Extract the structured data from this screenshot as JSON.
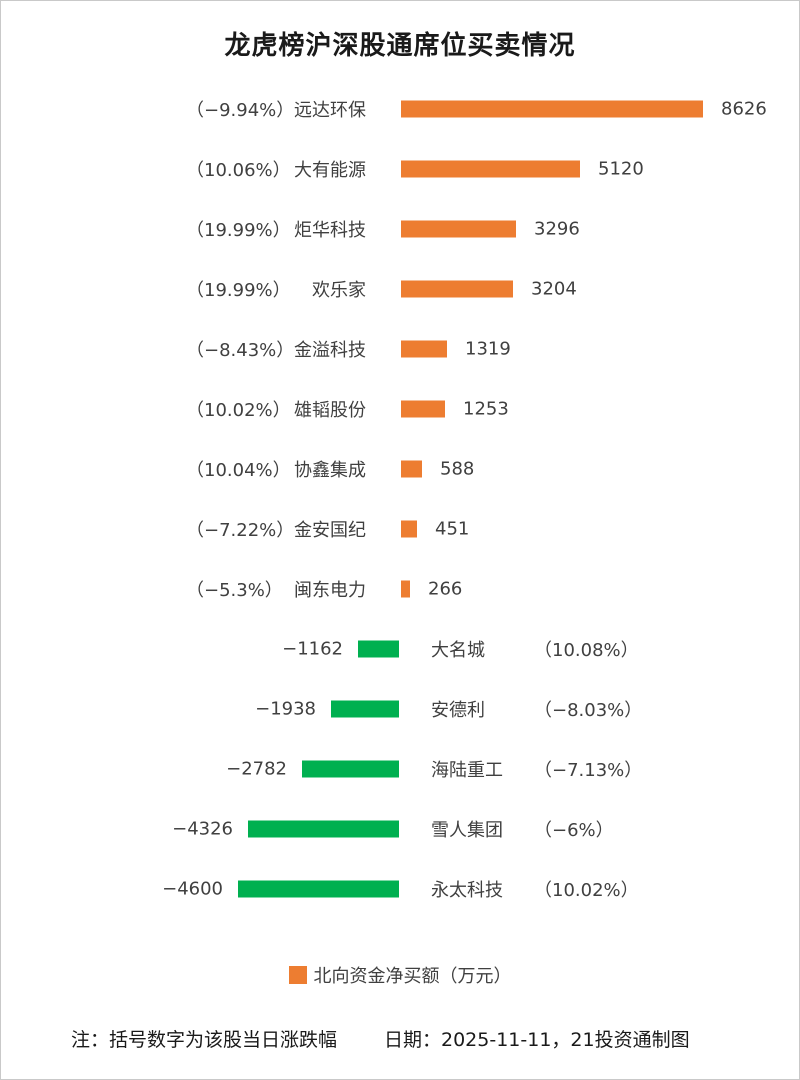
{
  "chart_data": {
    "type": "bar",
    "orientation": "horizontal",
    "title": "龙虎榜沪深股通席位买卖情况",
    "legend_label": "北向资金净买额（万元）",
    "legend_position": "bottom",
    "unit": "万元",
    "value_range": [
      -4600,
      8626
    ],
    "grid": false,
    "positive_color": "#ED7D31",
    "negative_color": "#00B050",
    "rows": [
      {
        "pct": "（−9.94%）",
        "name": "远达环保",
        "value": 8626,
        "display": "8626",
        "side": "buy"
      },
      {
        "pct": "（10.06%）",
        "name": "大有能源",
        "value": 5120,
        "display": "5120",
        "side": "buy"
      },
      {
        "pct": "（19.99%）",
        "name": "炬华科技",
        "value": 3296,
        "display": "3296",
        "side": "buy"
      },
      {
        "pct": "（19.99%）",
        "name": "欢乐家",
        "value": 3204,
        "display": "3204",
        "side": "buy"
      },
      {
        "pct": "（−8.43%）",
        "name": "金溢科技",
        "value": 1319,
        "display": "1319",
        "side": "buy"
      },
      {
        "pct": "（10.02%）",
        "name": "雄韬股份",
        "value": 1253,
        "display": "1253",
        "side": "buy"
      },
      {
        "pct": "（10.04%）",
        "name": "协鑫集成",
        "value": 588,
        "display": "588",
        "side": "buy"
      },
      {
        "pct": "（−7.22%）",
        "name": "金安国纪",
        "value": 451,
        "display": "451",
        "side": "buy"
      },
      {
        "pct": "（−5.3%）",
        "name": "闽东电力",
        "value": 266,
        "display": "266",
        "side": "buy"
      },
      {
        "pct": "（10.08%）",
        "name": "大名城",
        "value": -1162,
        "display": "−1162",
        "side": "sell"
      },
      {
        "pct": "（−8.03%）",
        "name": "安德利",
        "value": -1938,
        "display": "−1938",
        "side": "sell"
      },
      {
        "pct": "（−7.13%）",
        "name": "海陆重工",
        "value": -2782,
        "display": "−2782",
        "side": "sell"
      },
      {
        "pct": "（−6%）",
        "name": "雪人集团",
        "value": -4326,
        "display": "−4326",
        "side": "sell"
      },
      {
        "pct": "（10.02%）",
        "name": "永太科技",
        "value": -4600,
        "display": "−4600",
        "side": "sell"
      }
    ]
  },
  "footer": {
    "note": "注：括号数字为该股当日涨跌幅",
    "date": "日期：2025-11-11，21投资通制图"
  }
}
